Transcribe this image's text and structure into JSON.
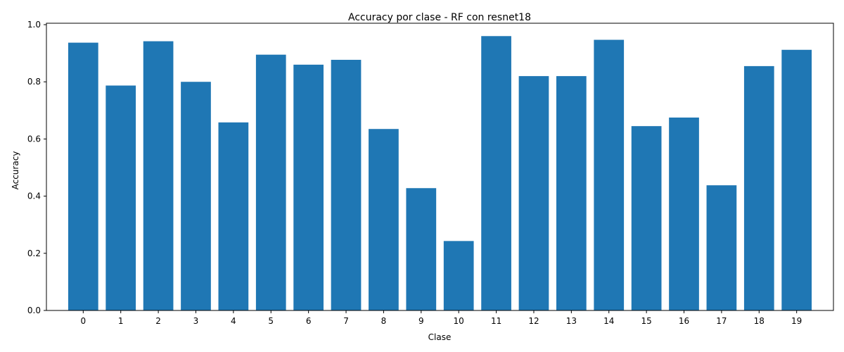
{
  "chart_data": {
    "type": "bar",
    "title": "Accuracy por clase - RF con resnet18",
    "xlabel": "Clase",
    "ylabel": "Accuracy",
    "categories": [
      "0",
      "1",
      "2",
      "3",
      "4",
      "5",
      "6",
      "7",
      "8",
      "9",
      "10",
      "11",
      "12",
      "13",
      "14",
      "15",
      "16",
      "17",
      "18",
      "19"
    ],
    "values": [
      0.937,
      0.787,
      0.942,
      0.8,
      0.658,
      0.895,
      0.86,
      0.877,
      0.635,
      0.428,
      0.243,
      0.96,
      0.82,
      0.82,
      0.947,
      0.645,
      0.675,
      0.438,
      0.855,
      0.912
    ],
    "ylim": [
      0,
      1.0
    ],
    "yticks": [
      "0.0",
      "0.2",
      "0.4",
      "0.6",
      "0.8",
      "1.0"
    ],
    "grid": false,
    "bar_color": "#1f77b4"
  }
}
